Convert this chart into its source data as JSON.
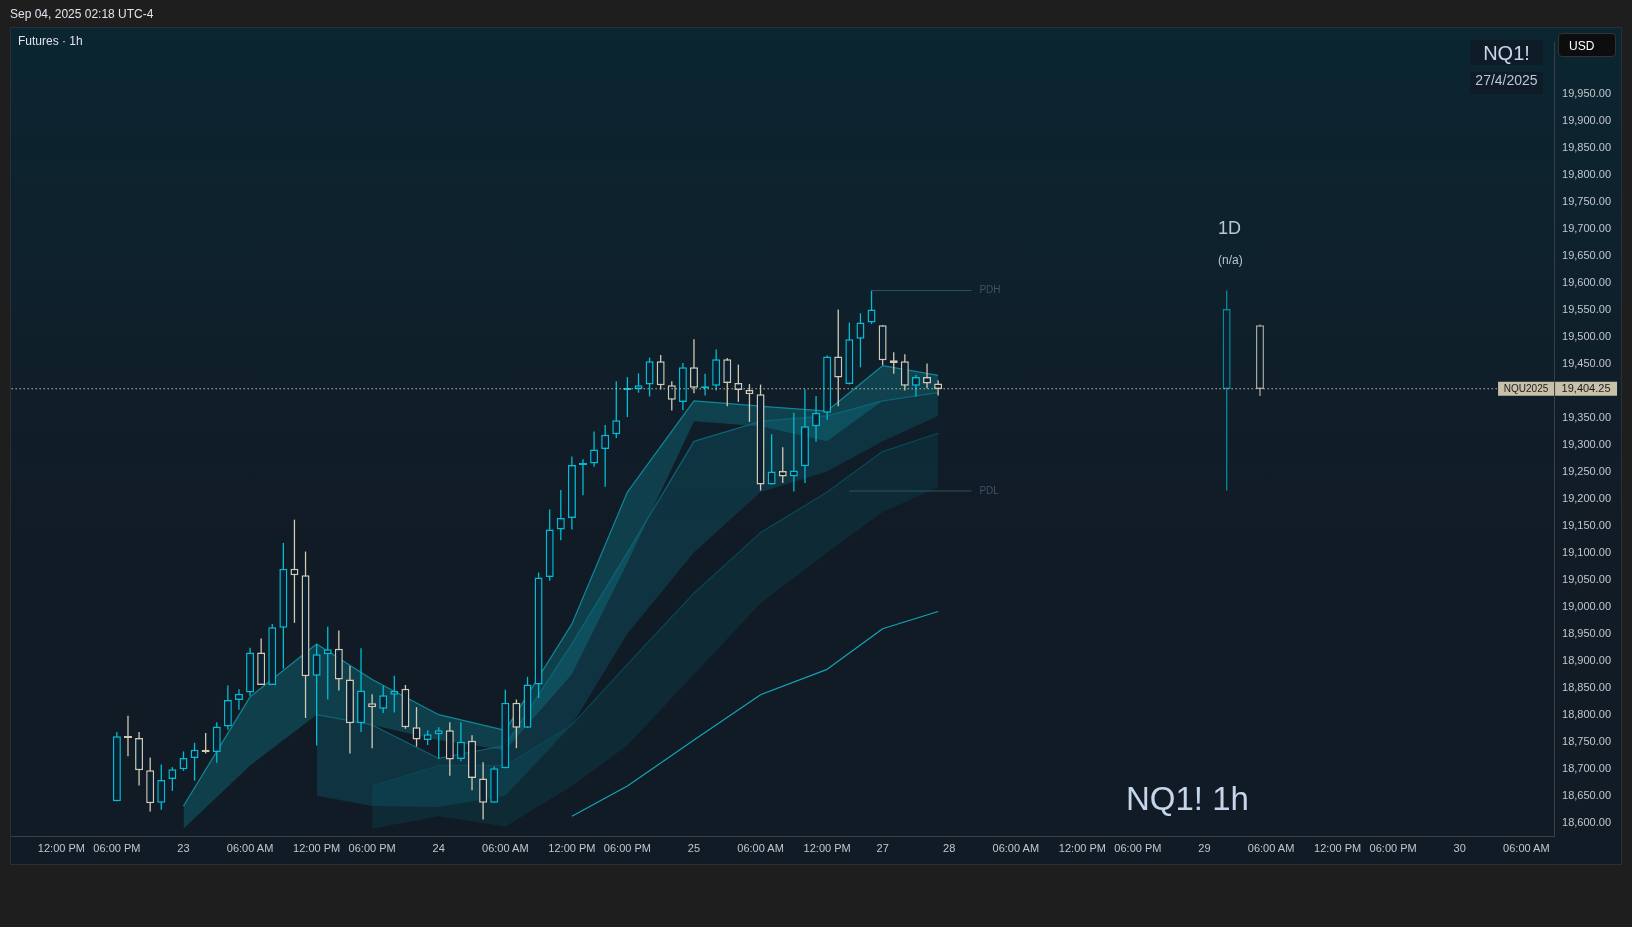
{
  "chart_data": {
    "type": "candlestick",
    "title": "Futures · 1h",
    "annotations": [
      "Sep 04, 2025 02:18 UTC-4",
      "NQ1!",
      "27/4/2025",
      "1D",
      "(n/a)",
      "NQ1! 1h",
      "USD",
      "19,404.25"
    ],
    "categories": [
      null,
      null,
      null,
      null,
      "12:00 PM",
      null,
      null,
      null,
      null,
      "06:00 PM",
      null,
      null,
      null,
      null,
      null,
      "23",
      null,
      null,
      null,
      null,
      null,
      "06:00 AM",
      null,
      null,
      null,
      null,
      null,
      "12:00 PM",
      null,
      null,
      null,
      null,
      "06:00 PM",
      null,
      null,
      null,
      null,
      null,
      "24",
      null,
      null,
      null,
      null,
      null,
      "06:00 AM",
      null,
      null,
      null,
      null,
      null,
      "12:00 PM",
      null,
      null,
      null,
      null,
      "06:00 PM",
      null,
      null,
      null,
      null,
      null,
      "25",
      null,
      null,
      null,
      null,
      null,
      "06:00 AM",
      null,
      null,
      null,
      null,
      null,
      "12:00 PM",
      null,
      null,
      null,
      null,
      "27",
      null,
      null,
      null,
      null,
      null,
      "28",
      null,
      null,
      null,
      null,
      null,
      "06:00 AM",
      null,
      null,
      null,
      null,
      null,
      "12:00 PM",
      null,
      null,
      null,
      null,
      "06:00 PM",
      null,
      null,
      null,
      null,
      null,
      "29",
      null,
      null,
      null,
      null,
      null,
      "06:00 AM",
      null,
      null,
      null,
      null,
      null,
      "12:00 PM",
      null,
      null,
      null,
      null,
      "06:00 PM",
      null,
      null,
      null,
      null,
      null,
      "30",
      null,
      null,
      null,
      null,
      null,
      "06:00 AM",
      null,
      null
    ],
    "ohlc": [
      null,
      null,
      null,
      null,
      null,
      null,
      null,
      null,
      null,
      [
        18641,
        18769,
        18641,
        18761
      ],
      [
        18761,
        18799,
        18724,
        18758
      ],
      [
        18758,
        18769,
        18670,
        18698
      ],
      [
        18698,
        18722,
        18622,
        18637
      ],
      [
        18638,
        18709,
        18625,
        18680
      ],
      [
        18682,
        18704,
        18660,
        18700
      ],
      [
        18700,
        18733,
        18697,
        18721
      ],
      [
        18721,
        18749,
        18679,
        18736
      ],
      [
        18736,
        18767,
        18729,
        18732
      ],
      [
        18732,
        18787,
        18712,
        18779
      ],
      [
        18779,
        18855,
        18773,
        18828
      ],
      [
        18828,
        18848,
        18810,
        18840
      ],
      [
        18842,
        18925,
        18836,
        18916
      ],
      [
        18916,
        18942,
        18856,
        18856
      ],
      [
        18856,
        18969,
        18856,
        18963
      ],
      [
        18962,
        19119,
        18886,
        19071
      ],
      [
        19071,
        19162,
        18971,
        19059
      ],
      [
        19059,
        19103,
        18795,
        18872
      ],
      [
        18873,
        18931,
        18744,
        18913
      ],
      [
        18913,
        18964,
        18829,
        18922
      ],
      [
        18923,
        18957,
        18846,
        18866
      ],
      [
        18866,
        18891,
        18729,
        18785
      ],
      [
        18785,
        18924,
        18769,
        18846
      ],
      [
        18822,
        18839,
        18739,
        18815
      ],
      [
        18812,
        18855,
        18804,
        18837
      ],
      [
        18838,
        18873,
        18805,
        18845
      ],
      [
        18849,
        18856,
        18775,
        18778
      ],
      [
        18778,
        18815,
        18742,
        18755
      ],
      [
        18754,
        18772,
        18745,
        18765
      ],
      [
        18765,
        18778,
        18719,
        18772
      ],
      [
        18772,
        18787,
        18688,
        18718
      ],
      [
        18719,
        18787,
        18715,
        18751
      ],
      [
        18753,
        18763,
        18661,
        18684
      ],
      [
        18683,
        18713,
        18607,
        18638
      ],
      [
        18638,
        18705,
        18638,
        18702
      ],
      [
        18702,
        18847,
        18702,
        18823
      ],
      [
        18823,
        18829,
        18739,
        18777
      ],
      [
        18777,
        18871,
        18777,
        18857
      ],
      [
        18857,
        19064,
        18832,
        19055
      ],
      [
        19056,
        19181,
        19049,
        19144
      ],
      [
        19144,
        19217,
        19124,
        19165
      ],
      [
        19165,
        19279,
        19144,
        19263
      ],
      [
        19263,
        19274,
        19207,
        19266
      ],
      [
        19266,
        19325,
        19260,
        19292
      ],
      [
        19293,
        19337,
        19223,
        19319
      ],
      [
        19320,
        19418,
        19313,
        19346
      ],
      [
        19402,
        19426,
        19352,
        19404
      ],
      [
        19404,
        19433,
        19397,
        19411
      ],
      [
        19412,
        19462,
        19390,
        19455
      ],
      [
        19455,
        19467,
        19403,
        19411
      ],
      [
        19411,
        19418,
        19364,
        19384
      ],
      [
        19380,
        19452,
        19365,
        19444
      ],
      [
        19444,
        19496,
        19396,
        19406
      ],
      [
        19405,
        19432,
        19392,
        19408
      ],
      [
        19410,
        19477,
        19401,
        19459
      ],
      [
        19459,
        19461,
        19372,
        19415
      ],
      [
        19415,
        19449,
        19380,
        19402
      ],
      [
        19402,
        19413,
        19343,
        19394
      ],
      [
        19394,
        19412,
        19216,
        19227
      ],
      [
        19227,
        19320,
        19227,
        19251
      ],
      [
        19252,
        19296,
        19230,
        19242
      ],
      [
        19242,
        19360,
        19214,
        19253
      ],
      [
        19261,
        19403,
        19230,
        19335
      ],
      [
        19335,
        19391,
        19306,
        19360
      ],
      [
        19360,
        19466,
        19347,
        19464
      ],
      [
        19464,
        19551,
        19372,
        19425
      ],
      [
        19413,
        19527,
        19412,
        19496
      ],
      [
        19497,
        19544,
        19444,
        19527
      ],
      [
        19527,
        19586,
        19524,
        19551
      ],
      [
        19522,
        19522,
        19448,
        19457
      ],
      [
        19457,
        19472,
        19432,
        19452
      ],
      [
        19455,
        19468,
        19401,
        19410
      ],
      [
        19410,
        19430,
        19390,
        19426
      ],
      [
        19426,
        19451,
        19405,
        19414
      ],
      [
        19414,
        19420,
        19392,
        19404
      ],
      null,
      null,
      null,
      null,
      null,
      null,
      null,
      null,
      null,
      null,
      null,
      null,
      null,
      null,
      null,
      null,
      null,
      null,
      null,
      null,
      null,
      null,
      null,
      null,
      null,
      [
        19404,
        19586,
        19216,
        19552
      ],
      null,
      null,
      [
        19522,
        19523,
        19391,
        19404
      ],
      null,
      null,
      null,
      null,
      null,
      null,
      null,
      null,
      null,
      null,
      null,
      null,
      null,
      null,
      null,
      null,
      null,
      null,
      null,
      null,
      null,
      null,
      null,
      null,
      null,
      null
    ],
    "colors": [
      null,
      null,
      null,
      null,
      null,
      null,
      null,
      null,
      null,
      "#00bcd4",
      "#d1c9b4",
      "#d1c9b4",
      "#d1c9b4",
      "#00bcd4",
      "#00bcd4",
      "#00bcd4",
      "#00bcd4",
      "#d1c9b4",
      "#00bcd4",
      "#00bcd4",
      "#00bcd4",
      "#00bcd4",
      "#d1c9b4",
      "#00bcd4",
      "#00bcd4",
      "#d1c9b4",
      "#d1c9b4",
      "#00bcd4",
      "#00bcd4",
      "#d1c9b4",
      "#d1c9b4",
      "#00bcd4",
      "#d1c9b4",
      "#00bcd4",
      "#00bcd4",
      "#d1c9b4",
      "#d1c9b4",
      "#00bcd4",
      "#00bcd4",
      "#d1c9b4",
      "#00bcd4",
      "#d1c9b4",
      "#d1c9b4",
      "#00bcd4",
      "#00bcd4",
      "#d1c9b4",
      "#00bcd4",
      "#00bcd4",
      "#00bcd4",
      "#00bcd4",
      "#00bcd4",
      "#00bcd4",
      "#00bcd4",
      "#00bcd4",
      "#00bcd4",
      "#00bcd4",
      "#00bcd4",
      "#00bcd4",
      "#d1c9b4",
      "#d1c9b4",
      "#00bcd4",
      "#d1c9b4",
      "#00bcd4",
      "#00bcd4",
      "#d1c9b4",
      "#d1c9b4",
      "#d1c9b4",
      "#d1c9b4",
      "#00bcd4",
      "#d1c9b4",
      "#00bcd4",
      "#00bcd4",
      "#00bcd4",
      "#00bcd4",
      "#d1c9b4",
      "#00bcd4",
      "#00bcd4",
      "#00bcd4",
      "#d1c9b4",
      "#d1c9b4",
      "#d1c9b4",
      "#00bcd4",
      "#d1c9b4",
      "#d1c9b4",
      null,
      null,
      null,
      null,
      null,
      null,
      null,
      null,
      null,
      null,
      null,
      null,
      null,
      null,
      null,
      null,
      null,
      null,
      null,
      null,
      null,
      null,
      null,
      null,
      null,
      "#078a9c",
      null,
      null,
      "#aaa696",
      null,
      null,
      null,
      null,
      null,
      null,
      null,
      null,
      null,
      null,
      null,
      null,
      null,
      null,
      null,
      null,
      null,
      null,
      null,
      null,
      null,
      null,
      null,
      null,
      null,
      null
    ],
    "ylim": [
      18575,
      20045
    ],
    "yticks": [
      {
        "value": 18600,
        "label": "18,600.00"
      },
      {
        "value": 18650,
        "label": "18,650.00"
      },
      {
        "value": 18700,
        "label": "18,700.00"
      },
      {
        "value": 18750,
        "label": "18,750.00"
      },
      {
        "value": 18800,
        "label": "18,800.00"
      },
      {
        "value": 18850,
        "label": "18,850.00"
      },
      {
        "value": 18900,
        "label": "18,900.00"
      },
      {
        "value": 18950,
        "label": "18,950.00"
      },
      {
        "value": 19000,
        "label": "19,000.00"
      },
      {
        "value": 19050,
        "label": "19,050.00"
      },
      {
        "value": 19100,
        "label": "19,100.00"
      },
      {
        "value": 19150,
        "label": "19,150.00"
      },
      {
        "value": 19200,
        "label": "19,200.00"
      },
      {
        "value": 19250,
        "label": "19,250.00"
      },
      {
        "value": 19300,
        "label": "19,300.00"
      },
      {
        "value": 19350,
        "label": "19,350.00"
      },
      {
        "value": 19450,
        "label": "19,450.00"
      },
      {
        "value": 19500,
        "label": "19,500.00"
      },
      {
        "value": 19550,
        "label": "19,550.00"
      },
      {
        "value": 19600,
        "label": "19,600.00"
      },
      {
        "value": 19650,
        "label": "19,650.00"
      },
      {
        "value": 19700,
        "label": "19,700.00"
      },
      {
        "value": 19750,
        "label": "19,750.00"
      },
      {
        "value": 19800,
        "label": "19,800.00"
      },
      {
        "value": 19850,
        "label": "19,850.00"
      },
      {
        "value": 19900,
        "label": "19,900.00"
      },
      {
        "value": 19950,
        "label": "19,950.00"
      }
    ],
    "ref_lines": [
      {
        "axis": "y",
        "value": 19404.25,
        "label": "NQU2025",
        "line_style": "dotted",
        "color": "#c8c0a8"
      },
      {
        "axis": "y",
        "value": 19586,
        "label": "PDH",
        "line_style": "solid",
        "color": "#2a5566"
      },
      {
        "axis": "y",
        "value": 19215,
        "label": "PDL",
        "line_style": "solid",
        "color": "#2a5566"
      }
    ],
    "series": [
      {
        "type": "line",
        "color": "#0f8799",
        "values": [
          null,
          null,
          null,
          null,
          null,
          null,
          null,
          null,
          null,
          null,
          null,
          null,
          null,
          null,
          null,
          18632,
          null,
          null,
          null,
          null,
          null,
          18834,
          null,
          null,
          null,
          null,
          null,
          18932,
          null,
          null,
          null,
          null,
          18866,
          null,
          null,
          null,
          null,
          null,
          18801,
          null,
          null,
          null,
          null,
          null,
          18772,
          null,
          null,
          null,
          null,
          null,
          18969,
          null,
          null,
          null,
          null,
          19213,
          null,
          null,
          null,
          null,
          null,
          19382,
          null,
          null,
          null,
          null,
          null,
          19372,
          null,
          null,
          null,
          null,
          null,
          19363,
          null,
          null,
          null,
          null,
          19447,
          null,
          null,
          null,
          null,
          19429,
          null,
          null,
          null,
          null,
          null,
          null,
          null,
          null,
          null,
          null,
          null,
          null,
          null,
          null,
          null,
          null,
          null,
          null,
          null,
          null,
          null,
          null,
          null,
          null,
          null,
          null,
          null,
          null,
          null,
          null,
          null,
          null,
          null,
          null,
          null,
          null,
          null,
          null,
          null,
          null,
          null,
          null,
          null,
          null,
          null,
          null,
          null,
          null,
          null,
          null,
          null,
          null,
          null,
          null,
          null
        ],
        "lower": [
          null,
          null,
          null,
          null,
          null,
          null,
          null,
          null,
          null,
          null,
          null,
          null,
          null,
          null,
          null,
          18590,
          null,
          null,
          null,
          null,
          null,
          18707,
          null,
          null,
          null,
          null,
          null,
          18801,
          null,
          null,
          null,
          null,
          18782,
          null,
          null,
          null,
          null,
          null,
          18754,
          null,
          null,
          null,
          null,
          null,
          18735,
          null,
          null,
          null,
          null,
          null,
          18876,
          null,
          null,
          null,
          null,
          19082,
          null,
          null,
          null,
          null,
          null,
          19344,
          null,
          null,
          null,
          null,
          null,
          19335,
          null,
          null,
          null,
          null,
          null,
          19307,
          null,
          null,
          null,
          null,
          19382,
          null,
          null,
          null,
          null,
          19397,
          null,
          null,
          null,
          null,
          null,
          null,
          null,
          null,
          null,
          null,
          null,
          null,
          null,
          null,
          null,
          null,
          null,
          null,
          null,
          null,
          null,
          null,
          null,
          null,
          null,
          null,
          null,
          null,
          null,
          null,
          null,
          null,
          null,
          null,
          null,
          null,
          null,
          null,
          null,
          null,
          null,
          null,
          null,
          null,
          null,
          null,
          null,
          null,
          null,
          null,
          null,
          null,
          null,
          null,
          null
        ],
        "upper": [
          null,
          null,
          null,
          null,
          null,
          null,
          null,
          null,
          null,
          null,
          null,
          null,
          null,
          null,
          null,
          18632,
          null,
          null,
          null,
          null,
          null,
          18834,
          null,
          null,
          null,
          null,
          null,
          18932,
          null,
          null,
          null,
          null,
          18866,
          null,
          null,
          null,
          null,
          null,
          18801,
          null,
          null,
          null,
          null,
          null,
          18772,
          null,
          null,
          null,
          null,
          null,
          18969,
          null,
          null,
          null,
          null,
          19213,
          null,
          null,
          null,
          null,
          null,
          19382,
          null,
          null,
          null,
          null,
          null,
          19372,
          null,
          null,
          null,
          null,
          null,
          19363,
          null,
          null,
          null,
          null,
          19447,
          null,
          null,
          null,
          null,
          19429,
          null,
          null,
          null,
          null,
          null,
          null,
          null,
          null,
          null,
          null,
          null,
          null,
          null,
          null,
          null,
          null,
          null,
          null,
          null,
          null,
          null,
          null,
          null,
          null,
          null,
          null,
          null,
          null,
          null,
          null,
          null,
          null,
          null,
          null,
          null,
          null,
          null,
          null,
          null,
          null,
          null,
          null,
          null,
          null,
          null,
          null,
          null,
          null,
          null,
          null,
          null,
          null,
          null,
          null,
          null
        ]
      },
      {
        "type": "line",
        "color": "#0c6474",
        "values": [
          null,
          null,
          null,
          null,
          null,
          null,
          null,
          null,
          null,
          null,
          null,
          null,
          null,
          null,
          null,
          null,
          null,
          null,
          null,
          null,
          null,
          null,
          null,
          null,
          null,
          null,
          null,
          18801,
          null,
          null,
          null,
          null,
          18782,
          null,
          null,
          null,
          null,
          null,
          18720,
          null,
          null,
          null,
          null,
          null,
          18744,
          null,
          null,
          null,
          null,
          null,
          18932,
          null,
          null,
          null,
          null,
          19101,
          null,
          null,
          null,
          null,
          null,
          19307,
          null,
          null,
          null,
          null,
          null,
          19344,
          null,
          null,
          null,
          null,
          null,
          19354,
          null,
          null,
          null,
          null,
          19382,
          null,
          null,
          null,
          null,
          19397,
          null,
          null,
          null,
          null,
          null,
          null,
          null,
          null,
          null,
          null,
          null,
          null,
          null,
          null,
          null,
          null,
          null,
          null,
          null,
          null,
          null,
          null,
          null,
          null,
          null,
          null,
          null,
          null,
          null,
          null,
          null,
          null,
          null,
          null,
          null,
          null,
          null,
          null,
          null,
          null,
          null,
          null,
          null,
          null,
          null,
          null,
          null,
          null,
          null,
          null,
          null,
          null,
          null,
          null,
          null
        ],
        "lower": [
          null,
          null,
          null,
          null,
          null,
          null,
          null,
          null,
          null,
          null,
          null,
          null,
          null,
          null,
          null,
          null,
          null,
          null,
          null,
          null,
          null,
          null,
          null,
          null,
          null,
          null,
          null,
          18651,
          null,
          null,
          null,
          null,
          18632,
          null,
          null,
          null,
          null,
          null,
          18630,
          null,
          null,
          null,
          null,
          null,
          18651,
          null,
          null,
          null,
          null,
          null,
          18782,
          null,
          null,
          null,
          null,
          18951,
          null,
          null,
          null,
          null,
          null,
          19101,
          null,
          null,
          null,
          null,
          null,
          19213,
          null,
          null,
          null,
          null,
          null,
          19251,
          null,
          null,
          null,
          null,
          19307,
          null,
          null,
          null,
          null,
          19354,
          null,
          null,
          null,
          null,
          null,
          null,
          null,
          null,
          null,
          null,
          null,
          null,
          null,
          null,
          null,
          null,
          null,
          null,
          null,
          null,
          null,
          null,
          null,
          null,
          null,
          null,
          null,
          null,
          null,
          null,
          null,
          null,
          null,
          null,
          null,
          null,
          null,
          null,
          null,
          null,
          null,
          null,
          null,
          null,
          null,
          null,
          null,
          null,
          null,
          null,
          null,
          null,
          null,
          null,
          null
        ],
        "upper": [
          null,
          null,
          null,
          null,
          null,
          null,
          null,
          null,
          null,
          null,
          null,
          null,
          null,
          null,
          null,
          null,
          null,
          null,
          null,
          null,
          null,
          null,
          null,
          null,
          null,
          null,
          null,
          18801,
          null,
          null,
          null,
          null,
          18782,
          null,
          null,
          null,
          null,
          null,
          18720,
          null,
          null,
          null,
          null,
          null,
          18744,
          null,
          null,
          null,
          null,
          null,
          18932,
          null,
          null,
          null,
          null,
          19101,
          null,
          null,
          null,
          null,
          null,
          19307,
          null,
          null,
          null,
          null,
          null,
          19344,
          null,
          null,
          null,
          null,
          null,
          19354,
          null,
          null,
          null,
          null,
          19382,
          null,
          null,
          null,
          null,
          19397,
          null,
          null,
          null,
          null,
          null,
          null,
          null,
          null,
          null,
          null,
          null,
          null,
          null,
          null,
          null,
          null,
          null,
          null,
          null,
          null,
          null,
          null,
          null,
          null,
          null,
          null,
          null,
          null,
          null,
          null,
          null,
          null,
          null,
          null,
          null,
          null,
          null,
          null,
          null,
          null,
          null,
          null,
          null,
          null,
          null,
          null,
          null,
          null,
          null,
          null,
          null,
          null,
          null,
          null,
          null
        ]
      },
      {
        "type": "line",
        "color": "#0a4855",
        "values": [
          null,
          null,
          null,
          null,
          null,
          null,
          null,
          null,
          null,
          null,
          null,
          null,
          null,
          null,
          null,
          null,
          null,
          null,
          null,
          null,
          null,
          null,
          null,
          null,
          null,
          null,
          null,
          null,
          null,
          null,
          null,
          null,
          18669,
          null,
          null,
          null,
          null,
          null,
          18707,
          null,
          null,
          null,
          null,
          null,
          18707,
          null,
          null,
          null,
          null,
          null,
          18782,
          null,
          null,
          null,
          null,
          18894,
          null,
          null,
          null,
          null,
          null,
          19026,
          null,
          null,
          null,
          null,
          null,
          19138,
          null,
          null,
          null,
          null,
          null,
          19213,
          null,
          null,
          null,
          null,
          19288,
          null,
          null,
          null,
          null,
          19322,
          null,
          null,
          null,
          null,
          null,
          null,
          null,
          null,
          null,
          null,
          null,
          null,
          null,
          null,
          null,
          null,
          null,
          null,
          null,
          null,
          null,
          null,
          null,
          null,
          null,
          null,
          null,
          null,
          null,
          null,
          null,
          null,
          null,
          null,
          null,
          null,
          null,
          null,
          null,
          null,
          null,
          null,
          null,
          null,
          null,
          null,
          null,
          null,
          null,
          null,
          null,
          null,
          null,
          null,
          null
        ],
        "lower": [
          null,
          null,
          null,
          null,
          null,
          null,
          null,
          null,
          null,
          null,
          null,
          null,
          null,
          null,
          null,
          null,
          null,
          null,
          null,
          null,
          null,
          null,
          null,
          null,
          null,
          null,
          null,
          null,
          null,
          null,
          null,
          null,
          18590,
          null,
          null,
          null,
          null,
          null,
          18613,
          null,
          null,
          null,
          null,
          null,
          18594,
          null,
          null,
          null,
          null,
          null,
          18669,
          null,
          null,
          null,
          null,
          18744,
          null,
          null,
          null,
          null,
          null,
          18876,
          null,
          null,
          null,
          null,
          null,
          19007,
          null,
          null,
          null,
          null,
          null,
          19101,
          null,
          null,
          null,
          null,
          19176,
          null,
          null,
          null,
          null,
          19222,
          null,
          null,
          null,
          null,
          null,
          null,
          null,
          null,
          null,
          null,
          null,
          null,
          null,
          null,
          null,
          null,
          null,
          null,
          null,
          null,
          null,
          null,
          null,
          null,
          null,
          null,
          null,
          null,
          null,
          null,
          null,
          null,
          null,
          null,
          null,
          null,
          null,
          null,
          null,
          null,
          null,
          null,
          null,
          null,
          null,
          null,
          null,
          null,
          null,
          null,
          null,
          null,
          null,
          null,
          null
        ],
        "upper": [
          null,
          null,
          null,
          null,
          null,
          null,
          null,
          null,
          null,
          null,
          null,
          null,
          null,
          null,
          null,
          null,
          null,
          null,
          null,
          null,
          null,
          null,
          null,
          null,
          null,
          null,
          null,
          null,
          null,
          null,
          null,
          null,
          18669,
          null,
          null,
          null,
          null,
          null,
          18707,
          null,
          null,
          null,
          null,
          null,
          18707,
          null,
          null,
          null,
          null,
          null,
          18782,
          null,
          null,
          null,
          null,
          18894,
          null,
          null,
          null,
          null,
          null,
          19026,
          null,
          null,
          null,
          null,
          null,
          19138,
          null,
          null,
          null,
          null,
          null,
          19213,
          null,
          null,
          null,
          null,
          19288,
          null,
          null,
          null,
          null,
          19322,
          null,
          null,
          null,
          null,
          null,
          null,
          null,
          null,
          null,
          null,
          null,
          null,
          null,
          null,
          null,
          null,
          null,
          null,
          null,
          null,
          null,
          null,
          null,
          null,
          null,
          null,
          null,
          null,
          null,
          null,
          null,
          null,
          null,
          null,
          null,
          null,
          null,
          null,
          null,
          null,
          null,
          null,
          null,
          null,
          null,
          null,
          null,
          null,
          null,
          null,
          null,
          null,
          null,
          null,
          null
        ]
      },
      {
        "type": "line",
        "color": "#13a4b8",
        "values": [
          null,
          null,
          null,
          null,
          null,
          null,
          null,
          null,
          null,
          null,
          null,
          null,
          null,
          null,
          null,
          null,
          null,
          null,
          null,
          null,
          null,
          null,
          null,
          null,
          null,
          null,
          null,
          null,
          null,
          null,
          null,
          null,
          null,
          null,
          null,
          null,
          null,
          null,
          null,
          null,
          null,
          null,
          null,
          null,
          null,
          null,
          null,
          null,
          null,
          null,
          18613,
          null,
          null,
          null,
          null,
          18669,
          null,
          null,
          null,
          null,
          null,
          18754,
          null,
          null,
          null,
          null,
          null,
          18838,
          null,
          null,
          null,
          null,
          null,
          18885,
          null,
          null,
          null,
          null,
          18960,
          null,
          null,
          null,
          null,
          18992,
          null,
          null,
          null,
          null,
          null,
          null,
          null,
          null,
          null,
          null,
          null,
          null,
          null,
          null,
          null,
          null,
          null,
          null,
          null,
          null,
          null,
          null,
          null,
          null,
          null,
          null,
          null,
          null,
          null,
          null,
          null,
          null,
          null,
          null,
          null,
          null,
          null,
          null,
          null,
          null,
          null,
          null,
          null,
          null,
          null,
          null,
          null,
          null,
          null,
          null,
          null,
          null,
          null,
          null,
          null
        ]
      }
    ]
  }
}
